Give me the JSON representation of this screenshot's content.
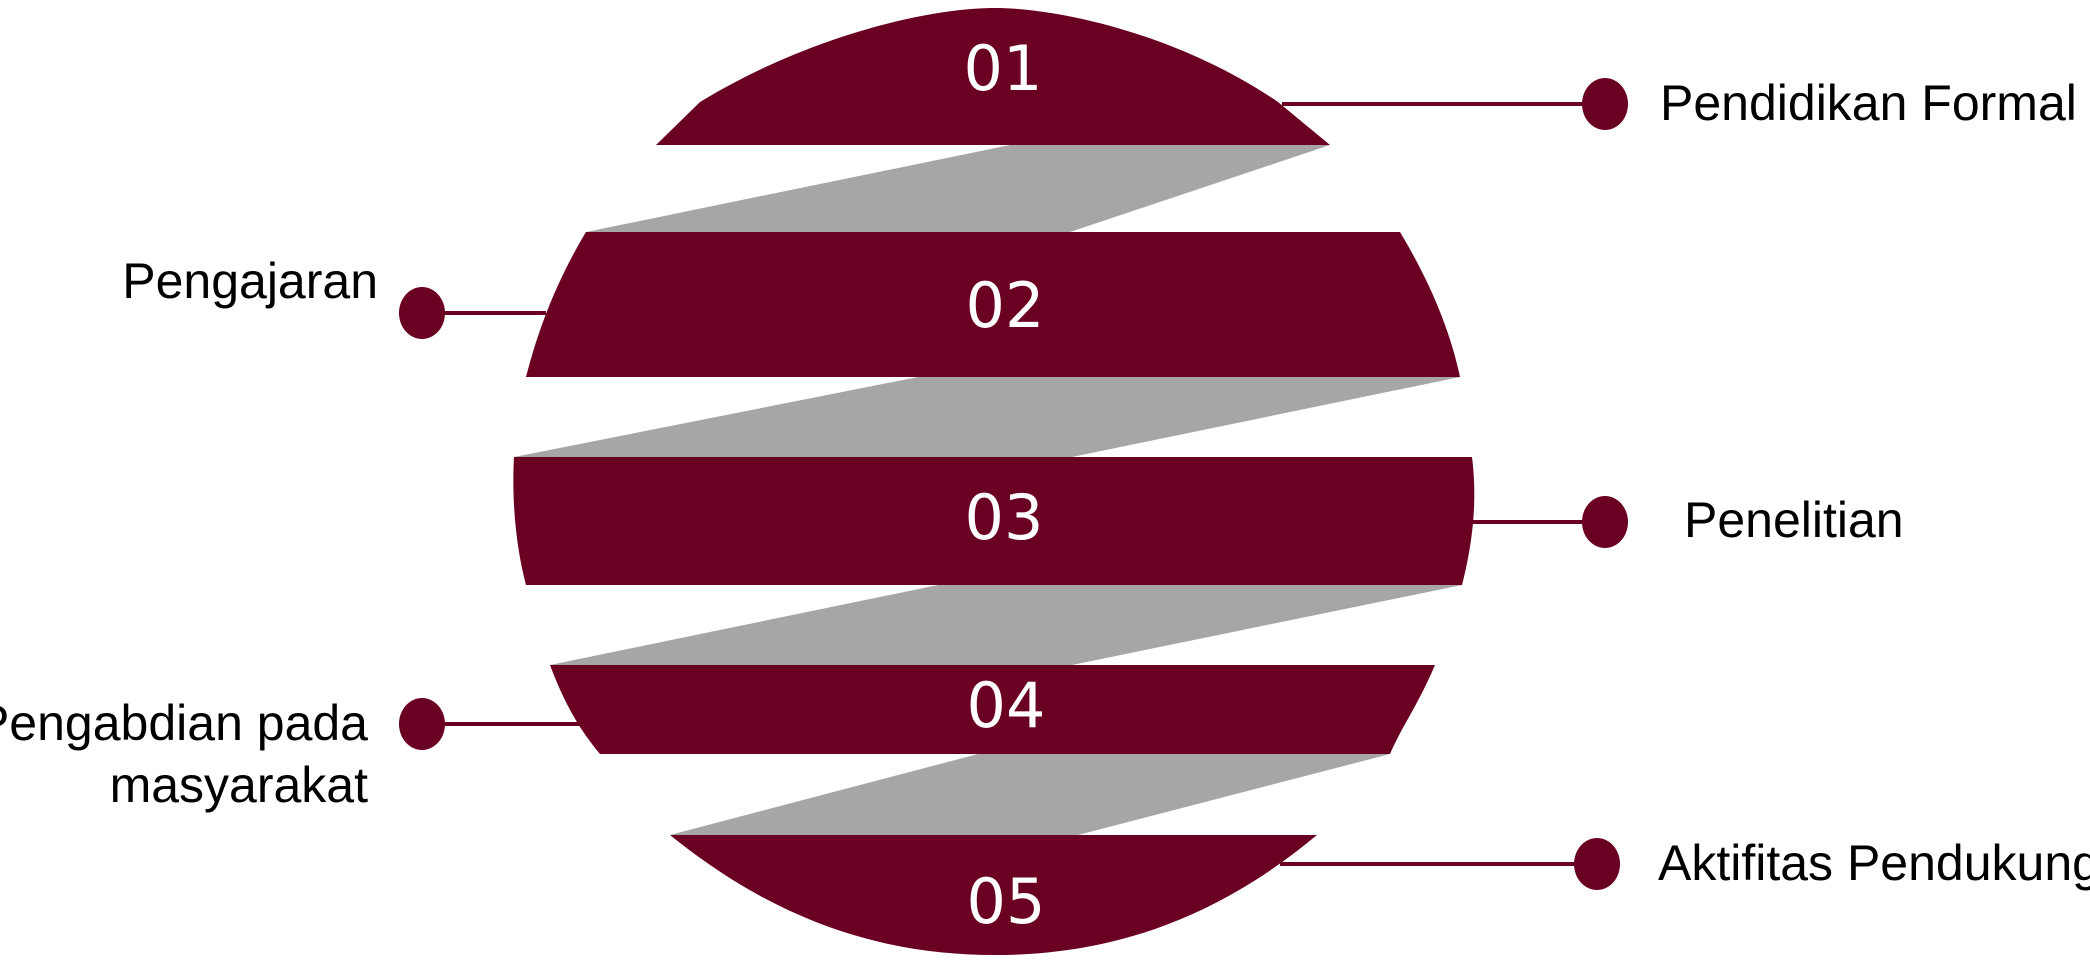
{
  "diagram": {
    "accent_color": "#6a0022",
    "connector_color": "#a6a6a6",
    "segments": [
      {
        "number": "01",
        "label": "Pendidikan Formal"
      },
      {
        "number": "02",
        "label": "Pengajaran"
      },
      {
        "number": "03",
        "label": "Penelitian"
      },
      {
        "number": "04",
        "label": "Pengabdian pada masyarakat",
        "label_lines": [
          "Pengabdian pada",
          "masyarakat"
        ]
      },
      {
        "number": "05",
        "label": "Aktifitas Pendukung"
      }
    ]
  }
}
